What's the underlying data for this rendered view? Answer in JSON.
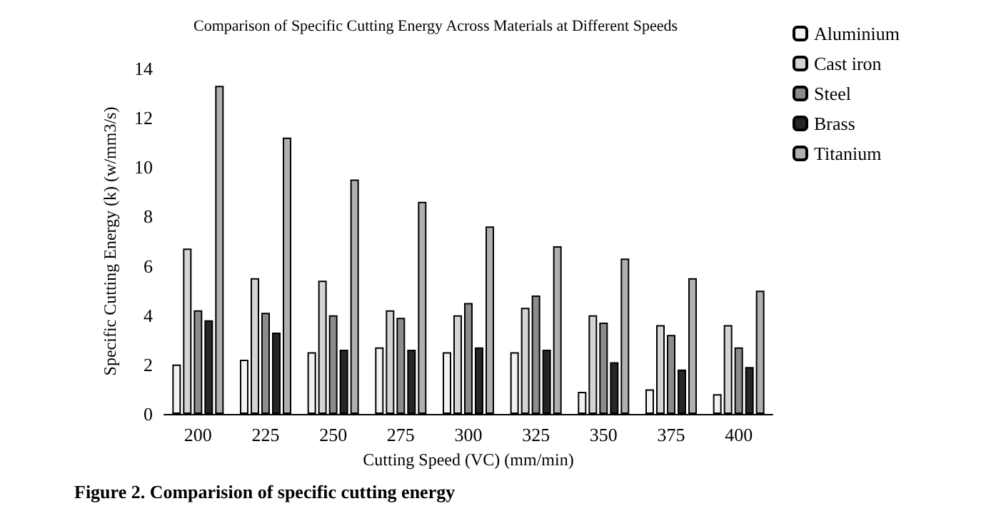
{
  "chart_data": {
    "type": "bar",
    "title": "Comparison of Specific Cutting Energy Across Materials at Different Speeds",
    "xlabel": "Cutting Speed (VC) (mm/min)",
    "ylabel": "Specific Cutting Energy (k) (w/mm3/s)",
    "categories": [
      "200",
      "225",
      "250",
      "275",
      "300",
      "325",
      "350",
      "375",
      "400"
    ],
    "series": [
      {
        "name": "Aluminium",
        "color": "#f2f2f2",
        "values": [
          2.0,
          2.2,
          2.5,
          2.7,
          2.5,
          2.5,
          0.9,
          1.0,
          0.8
        ]
      },
      {
        "name": "Cast iron",
        "color": "#d4d4d4",
        "values": [
          6.7,
          5.5,
          5.4,
          4.2,
          4.0,
          4.3,
          4.0,
          3.6,
          3.6
        ]
      },
      {
        "name": "Steel",
        "color": "#8c8c8c",
        "values": [
          4.2,
          4.1,
          4.0,
          3.9,
          4.5,
          4.8,
          3.7,
          3.2,
          2.7
        ]
      },
      {
        "name": "Brass",
        "color": "#262626",
        "values": [
          3.8,
          3.3,
          2.6,
          2.6,
          2.7,
          2.6,
          2.1,
          1.8,
          1.9
        ]
      },
      {
        "name": "Titanium",
        "color": "#b0b0b0",
        "values": [
          13.3,
          11.2,
          9.5,
          8.6,
          7.6,
          6.8,
          6.3,
          5.5,
          5.0
        ]
      }
    ],
    "ylim": [
      0,
      14
    ],
    "yticks": [
      0,
      2,
      4,
      6,
      8,
      10,
      12,
      14
    ],
    "grid": false,
    "legend": "top right",
    "annotations": [
      "Figure 2. Comparision of specific cutting energy"
    ]
  }
}
